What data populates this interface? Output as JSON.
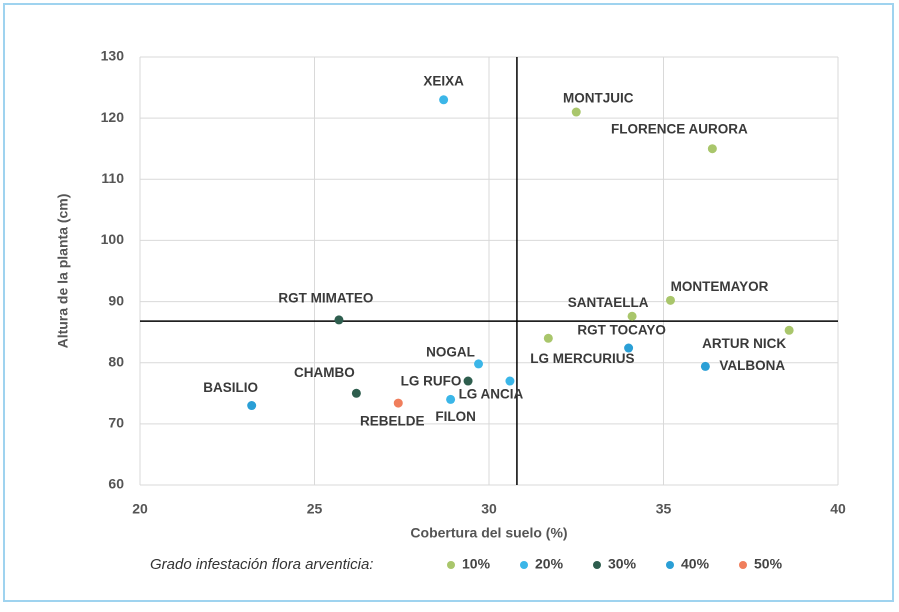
{
  "chart_data": {
    "type": "scatter",
    "xlabel": "Cobertura del suelo (%)",
    "ylabel": "Altura de la planta (cm)",
    "legend_title": "Grado infestación flora arventicia:",
    "xlim": [
      20,
      40
    ],
    "xticks": [
      20,
      25,
      30,
      35,
      40
    ],
    "ylim": [
      60,
      130
    ],
    "yticks": [
      60,
      70,
      80,
      90,
      100,
      110,
      120,
      130
    ],
    "grid": true,
    "reference_lines": {
      "x": 30.8,
      "y": 86.8
    },
    "series": [
      {
        "name": "10%",
        "color": "#a9c66b",
        "x": [
          32.5,
          36.4,
          35.2,
          34.1,
          38.6,
          31.7
        ],
        "y": [
          121,
          115,
          90.2,
          87.6,
          85.3,
          84
        ],
        "labels": [
          "MONTJUIC",
          "FLORENCE AURORA",
          "MONTEMAYOR",
          "SANTAELLA",
          "ARTUR NICK",
          "LG MERCURIUS"
        ]
      },
      {
        "name": "20%",
        "color": "#3bb6e8",
        "x": [
          28.7,
          29.7,
          30.6,
          28.9
        ],
        "y": [
          123,
          79.8,
          77,
          74
        ],
        "labels": [
          "XEIXA",
          "NOGAL",
          "LG ANCIA",
          "FILON"
        ]
      },
      {
        "name": "30%",
        "color": "#2e5e4e",
        "x": [
          25.7,
          29.4,
          26.2
        ],
        "y": [
          87,
          77,
          75
        ],
        "labels": [
          "RGT MIMATEO",
          "LG RUFO",
          "CHAMBO"
        ]
      },
      {
        "name": "40%",
        "color": "#2a9fd6",
        "x": [
          23.2,
          34.0,
          36.2
        ],
        "y": [
          73,
          82.4,
          79.4
        ],
        "labels": [
          "BASILIO",
          "RGT TOCAYO",
          "VALBONA"
        ]
      },
      {
        "name": "50%",
        "color": "#f07e5c",
        "x": [
          27.4
        ],
        "y": [
          73.4
        ],
        "labels": [
          "REBELDE"
        ]
      }
    ]
  }
}
